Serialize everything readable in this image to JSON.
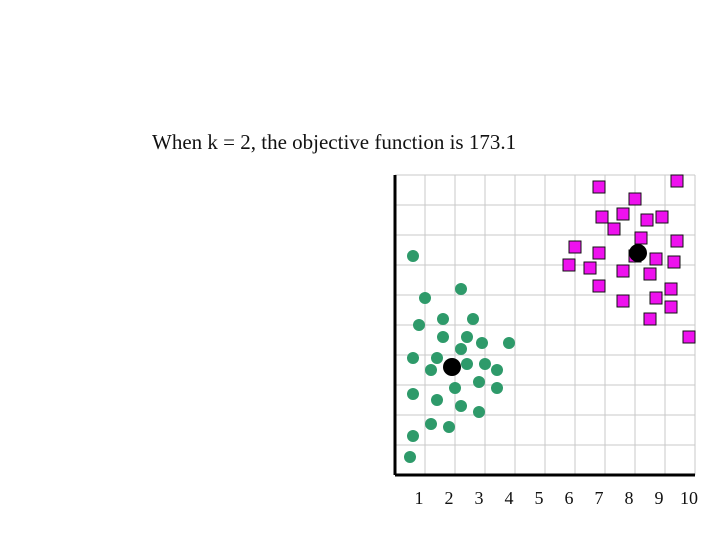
{
  "slide": {
    "title": "When k = 2, the objective function is 173.1"
  },
  "chart_data": {
    "type": "scatter",
    "xlim": [
      0,
      10
    ],
    "ylim": [
      0,
      10
    ],
    "x_ticks": [
      "1",
      "2",
      "3",
      "4",
      "5",
      "6",
      "7",
      "8",
      "9",
      "10"
    ],
    "grid": true,
    "colors": {
      "cluster_1": "#2e9a6a",
      "cluster_2": "#ee11ee",
      "centroid": "#000000",
      "grid": "#c9c9c9",
      "axis": "#000000"
    },
    "series": [
      {
        "marker": "circle",
        "points": [
          [
            0.6,
            7.3
          ],
          [
            1.0,
            5.9
          ],
          [
            2.2,
            6.2
          ],
          [
            0.8,
            5.0
          ],
          [
            1.6,
            5.2
          ],
          [
            2.6,
            5.2
          ],
          [
            1.6,
            4.6
          ],
          [
            2.4,
            4.6
          ],
          [
            2.2,
            4.2
          ],
          [
            2.9,
            4.4
          ],
          [
            3.8,
            4.4
          ],
          [
            0.6,
            3.9
          ],
          [
            1.4,
            3.9
          ],
          [
            1.2,
            3.5
          ],
          [
            2.4,
            3.7
          ],
          [
            3.0,
            3.7
          ],
          [
            3.4,
            3.5
          ],
          [
            2.8,
            3.1
          ],
          [
            2.0,
            2.9
          ],
          [
            3.4,
            2.9
          ],
          [
            0.6,
            2.7
          ],
          [
            1.4,
            2.5
          ],
          [
            2.2,
            2.3
          ],
          [
            2.8,
            2.1
          ],
          [
            1.2,
            1.7
          ],
          [
            1.8,
            1.6
          ],
          [
            0.6,
            1.3
          ],
          [
            0.5,
            0.6
          ]
        ]
      },
      {
        "marker": "square",
        "points": [
          [
            6.8,
            9.6
          ],
          [
            9.4,
            9.8
          ],
          [
            8.0,
            9.2
          ],
          [
            6.9,
            8.6
          ],
          [
            7.6,
            8.7
          ],
          [
            8.4,
            8.5
          ],
          [
            8.9,
            8.6
          ],
          [
            7.3,
            8.2
          ],
          [
            8.2,
            7.9
          ],
          [
            9.4,
            7.8
          ],
          [
            6.0,
            7.6
          ],
          [
            6.8,
            7.4
          ],
          [
            8.0,
            7.3
          ],
          [
            8.7,
            7.2
          ],
          [
            9.3,
            7.1
          ],
          [
            5.8,
            7.0
          ],
          [
            6.5,
            6.9
          ],
          [
            7.6,
            6.8
          ],
          [
            8.5,
            6.7
          ],
          [
            6.8,
            6.3
          ],
          [
            9.2,
            6.2
          ],
          [
            8.7,
            5.9
          ],
          [
            7.6,
            5.8
          ],
          [
            9.2,
            5.6
          ],
          [
            8.5,
            5.2
          ],
          [
            9.8,
            4.6
          ]
        ]
      },
      {
        "marker": "centroid",
        "points": [
          [
            1.9,
            3.6
          ],
          [
            8.1,
            7.4
          ]
        ]
      }
    ]
  }
}
